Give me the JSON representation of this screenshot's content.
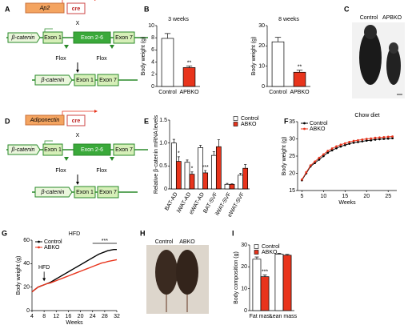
{
  "panel_labels": [
    "A",
    "B",
    "C",
    "D",
    "E",
    "F",
    "G",
    "H",
    "I"
  ],
  "diagrams": [
    {
      "promoter": "Ap2",
      "recombinase": "cre",
      "cross": "X",
      "gene": "β-catenin",
      "exons": [
        "Exon 1",
        "Exon 2-6",
        "Exon 7"
      ],
      "flox": [
        "Flox",
        "Flox"
      ],
      "result": {
        "gene": "β-catenin",
        "exons": [
          "Exon 1",
          "Exon 7"
        ]
      }
    },
    {
      "promoter": "Adiponectin",
      "recombinase": "cre",
      "cross": "X",
      "gene": "β-catenin",
      "exons": [
        "Exon 1",
        "Exon 2-6",
        "Exon 7"
      ],
      "flox": [
        "Flox",
        "Flox"
      ],
      "result": {
        "gene": "β-catenin",
        "exons": [
          "Exon 1",
          "Exon 7"
        ]
      }
    }
  ],
  "photos": [
    {
      "labels": [
        "Control",
        "APBKO"
      ]
    },
    {
      "labels": [
        "Control",
        "ABKO"
      ]
    }
  ],
  "chart_data": [
    {
      "type": "bar",
      "title": "3 weeks",
      "ylabel": "Body weight (g)",
      "categories": [
        "Control",
        "APBKO"
      ],
      "values": [
        7.9,
        3.1
      ],
      "errors": [
        0.8,
        0.25
      ],
      "significance": [
        null,
        "**"
      ],
      "colors": [
        "#ffffff",
        "#e8341c"
      ],
      "ylim": [
        0,
        10
      ],
      "yticks": [
        0,
        2,
        4,
        6,
        8,
        10
      ]
    },
    {
      "type": "bar",
      "title": "8 weeks",
      "ylabel": "Body weight (g)",
      "categories": [
        "Control",
        "APBKO"
      ],
      "values": [
        22,
        7
      ],
      "errors": [
        2.2,
        1.0
      ],
      "significance": [
        null,
        "**"
      ],
      "colors": [
        "#ffffff",
        "#e8341c"
      ],
      "ylim": [
        0,
        30
      ],
      "yticks": [
        0,
        10,
        20,
        30
      ]
    },
    {
      "type": "bar",
      "ylabel": "Relative β-catenin mRNA levels",
      "categories": [
        "BAT-AD",
        "iWAT-AD",
        "eWAT-AD",
        "BAT-SVF",
        "iWAT-SVF",
        "eWAT-SVF"
      ],
      "series": [
        {
          "name": "Control",
          "color": "#ffffff",
          "values": [
            1.0,
            0.58,
            0.9,
            0.73,
            0.1,
            0.3
          ],
          "errors": [
            0.08,
            0.05,
            0.05,
            0.08,
            0.02,
            0.04
          ]
        },
        {
          "name": "ABKO",
          "color": "#e8341c",
          "values": [
            0.6,
            0.32,
            0.35,
            0.92,
            0.1,
            0.45
          ],
          "errors": [
            0.1,
            0.05,
            0.05,
            0.15,
            0.01,
            0.08
          ],
          "significance": [
            "*",
            "*",
            "***",
            null,
            null,
            null
          ]
        }
      ],
      "ylim": [
        0,
        1.5
      ],
      "yticks": [
        0,
        0.5,
        {
          "value": 1,
          "label": "1.0"
        },
        1.5
      ],
      "legend": "upper right"
    },
    {
      "type": "line",
      "title": "Chow diet",
      "xlabel": "Weeks",
      "ylabel": "Body weight (g)",
      "markers": true,
      "x": [
        5,
        6,
        7,
        8,
        9,
        10,
        11,
        12,
        13,
        14,
        15,
        16,
        17,
        18,
        19,
        20,
        21,
        22,
        23,
        24,
        25,
        26
      ],
      "series": [
        {
          "name": "Control",
          "color": "#000000",
          "values": [
            18,
            20,
            22,
            23,
            24,
            25,
            26,
            26.7,
            27.3,
            27.8,
            28.2,
            28.6,
            28.9,
            29.1,
            29.3,
            29.5,
            29.6,
            29.8,
            29.9,
            30,
            30.1,
            30.2
          ]
        },
        {
          "name": "ABKO",
          "color": "#e8341c",
          "values": [
            18.2,
            20.3,
            22.3,
            23.4,
            24.5,
            25.5,
            26.5,
            27.2,
            27.8,
            28.3,
            28.7,
            29.1,
            29.4,
            29.6,
            29.8,
            30,
            30.1,
            30.3,
            30.4,
            30.5,
            30.6,
            30.7
          ]
        }
      ],
      "xlim": [
        4,
        27
      ],
      "xticks": [
        5,
        10,
        15,
        20,
        25
      ],
      "ylim": [
        15,
        35
      ],
      "yticks": [
        15,
        20,
        25,
        30,
        35
      ],
      "legend": "upper left"
    },
    {
      "type": "line",
      "title": "HFD",
      "xlabel": "Weeks",
      "ylabel": "Body weight (g)",
      "markers": false,
      "x": [
        4,
        5,
        6,
        7,
        8,
        9,
        10,
        11,
        12,
        13,
        14,
        15,
        16,
        17,
        18,
        19,
        20,
        21,
        22,
        23,
        24,
        25,
        26,
        27,
        28,
        29,
        30,
        31,
        32
      ],
      "series": [
        {
          "name": "Control",
          "color": "#000000",
          "values": [
            16,
            18,
            20,
            21,
            22,
            23,
            24,
            25.5,
            27,
            28.5,
            30,
            31.5,
            33,
            34.5,
            36,
            37.5,
            39,
            40.5,
            42,
            43.5,
            45,
            46.5,
            48,
            49,
            50,
            51,
            51.5,
            52,
            52
          ]
        },
        {
          "name": "ABKO",
          "color": "#e8341c",
          "values": [
            16,
            18,
            20,
            21,
            22,
            23,
            23.5,
            24.5,
            25.5,
            26.5,
            27.5,
            28.5,
            29.5,
            30.5,
            31.5,
            32.5,
            33.5,
            34.5,
            35.5,
            36.5,
            37.5,
            38.5,
            39.5,
            40.5,
            41,
            41.8,
            42.3,
            42.8,
            43.3
          ]
        }
      ],
      "xlim": [
        4,
        32
      ],
      "xticks": [
        4,
        8,
        12,
        16,
        20,
        24,
        28,
        32
      ],
      "ylim": [
        0,
        60
      ],
      "yticks": [
        0,
        20,
        40,
        60
      ],
      "legend": "upper left",
      "annotations": [
        {
          "text": "HFD",
          "x": 8
        },
        {
          "text": "***",
          "x": [
            24,
            32
          ]
        }
      ]
    },
    {
      "type": "bar",
      "ylabel": "Body composition (g)",
      "categories": [
        "Fat mass",
        "Lean mass"
      ],
      "series": [
        {
          "name": "Control",
          "color": "#ffffff",
          "values": [
            23.5,
            25.8
          ],
          "errors": [
            1.0,
            0.4
          ]
        },
        {
          "name": "ABKO",
          "color": "#e8341c",
          "values": [
            15.5,
            25.3
          ],
          "errors": [
            0.8,
            0.4
          ],
          "significance": [
            "***",
            null
          ]
        }
      ],
      "ylim": [
        0,
        30
      ],
      "yticks": [
        0,
        10,
        20,
        30
      ],
      "legend": "upper left"
    }
  ]
}
